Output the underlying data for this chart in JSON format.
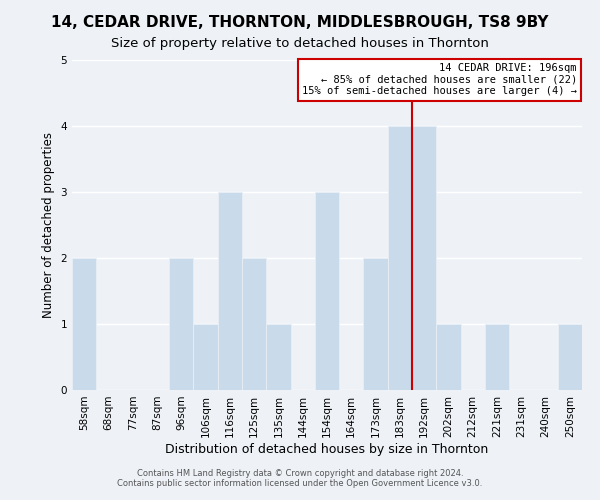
{
  "title": "14, CEDAR DRIVE, THORNTON, MIDDLESBROUGH, TS8 9BY",
  "subtitle": "Size of property relative to detached houses in Thornton",
  "xlabel": "Distribution of detached houses by size in Thornton",
  "ylabel": "Number of detached properties",
  "bins": [
    "58sqm",
    "68sqm",
    "77sqm",
    "87sqm",
    "96sqm",
    "106sqm",
    "116sqm",
    "125sqm",
    "135sqm",
    "144sqm",
    "154sqm",
    "164sqm",
    "173sqm",
    "183sqm",
    "192sqm",
    "202sqm",
    "212sqm",
    "221sqm",
    "231sqm",
    "240sqm",
    "250sqm"
  ],
  "values": [
    2,
    0,
    0,
    0,
    2,
    1,
    3,
    2,
    1,
    0,
    3,
    0,
    2,
    4,
    4,
    1,
    0,
    1,
    0,
    0,
    1
  ],
  "bar_color": "#c9daea",
  "bar_edge_color": "#e8eef4",
  "red_line_index": 14,
  "annotation_line1": "14 CEDAR DRIVE: 196sqm",
  "annotation_line2": "← 85% of detached houses are smaller (22)",
  "annotation_line3": "15% of semi-detached houses are larger (4) →",
  "annotation_box_color": "#ffffff",
  "annotation_box_edge": "#cc0000",
  "ylim": [
    0,
    5
  ],
  "yticks": [
    0,
    1,
    2,
    3,
    4,
    5
  ],
  "footer1": "Contains HM Land Registry data © Crown copyright and database right 2024.",
  "footer2": "Contains public sector information licensed under the Open Government Licence v3.0.",
  "background_color": "#eef2f7",
  "grid_color": "#ffffff",
  "title_fontsize": 11,
  "subtitle_fontsize": 9.5,
  "xlabel_fontsize": 9,
  "ylabel_fontsize": 8.5,
  "tick_fontsize": 7.5,
  "footer_fontsize": 6,
  "annot_fontsize": 7.5
}
